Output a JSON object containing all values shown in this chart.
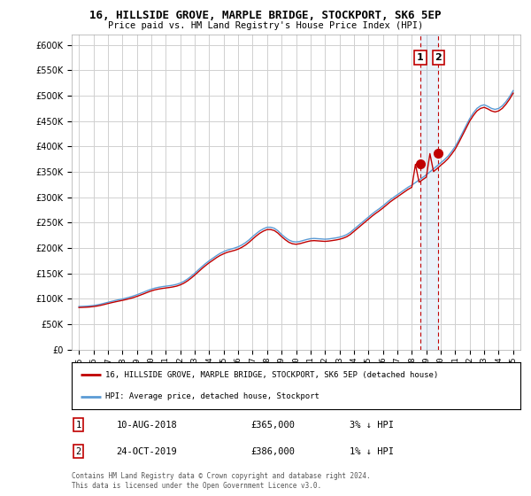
{
  "title": "16, HILLSIDE GROVE, MARPLE BRIDGE, STOCKPORT, SK6 5EP",
  "subtitle": "Price paid vs. HM Land Registry's House Price Index (HPI)",
  "ytick_values": [
    0,
    50000,
    100000,
    150000,
    200000,
    250000,
    300000,
    350000,
    400000,
    450000,
    500000,
    550000,
    600000
  ],
  "ylim": [
    0,
    620000
  ],
  "xlim_start": 1994.5,
  "xlim_end": 2025.5,
  "xticks": [
    1995,
    1996,
    1997,
    1998,
    1999,
    2000,
    2001,
    2002,
    2003,
    2004,
    2005,
    2006,
    2007,
    2008,
    2009,
    2010,
    2011,
    2012,
    2013,
    2014,
    2015,
    2016,
    2017,
    2018,
    2019,
    2020,
    2021,
    2022,
    2023,
    2024,
    2025
  ],
  "hpi_color": "#5b9bd5",
  "price_color": "#c00000",
  "marker_color": "#c00000",
  "annotation_color": "#c00000",
  "grid_color": "#d0d0d0",
  "bg_color": "#ffffff",
  "transaction1_date": "10-AUG-2018",
  "transaction1_price": "£365,000",
  "transaction1_pct": "3% ↓ HPI",
  "transaction2_date": "24-OCT-2019",
  "transaction2_price": "£386,000",
  "transaction2_pct": "1% ↓ HPI",
  "footer": "Contains HM Land Registry data © Crown copyright and database right 2024.\nThis data is licensed under the Open Government Licence v3.0.",
  "legend1": "16, HILLSIDE GROVE, MARPLE BRIDGE, STOCKPORT, SK6 5EP (detached house)",
  "legend2": "HPI: Average price, detached house, Stockport",
  "hpi_y": [
    85000,
    85300,
    85700,
    86200,
    87000,
    88100,
    89600,
    91400,
    93200,
    95000,
    96700,
    98300,
    99800,
    101500,
    103400,
    105600,
    108000,
    110800,
    113500,
    116500,
    119000,
    121200,
    122800,
    124000,
    125000,
    125900,
    127000,
    128600,
    131000,
    134500,
    139000,
    144500,
    150500,
    157000,
    163500,
    169500,
    175000,
    180000,
    185000,
    189500,
    193000,
    196000,
    198000,
    200000,
    202500,
    206000,
    210500,
    216000,
    222500,
    228500,
    234000,
    238000,
    241000,
    241000,
    239000,
    234000,
    227000,
    221000,
    216000,
    213000,
    212000,
    213000,
    215000,
    217000,
    218500,
    219000,
    218500,
    218000,
    217500,
    218000,
    219000,
    220000,
    221500,
    223500,
    226500,
    231000,
    237000,
    243000,
    249000,
    255000,
    261000,
    267000,
    272500,
    277500,
    283000,
    289000,
    295000,
    300000,
    305000,
    310000,
    315000,
    320000,
    324000,
    329000,
    334000,
    339000,
    344000,
    350000,
    356000,
    362000,
    368000,
    374000,
    381000,
    390000,
    400000,
    413000,
    427000,
    441000,
    455000,
    466000,
    475000,
    480000,
    482000,
    479000,
    475000,
    473000,
    475000,
    480000,
    488000,
    498000,
    510000
  ],
  "price_y": [
    83000,
    83300,
    83600,
    84100,
    84900,
    85900,
    87300,
    89000,
    90800,
    92500,
    94100,
    95600,
    97100,
    98700,
    100500,
    102500,
    104800,
    107500,
    110200,
    113100,
    115700,
    117800,
    119300,
    120500,
    121500,
    122400,
    123600,
    125100,
    127500,
    130900,
    135400,
    140800,
    146800,
    153200,
    159700,
    165600,
    171100,
    176000,
    181100,
    185400,
    188800,
    191700,
    193600,
    195500,
    197900,
    201400,
    205800,
    211300,
    217700,
    223900,
    229300,
    233500,
    236400,
    236500,
    234500,
    229500,
    222600,
    216600,
    211500,
    208500,
    207500,
    208600,
    210600,
    212600,
    214200,
    214700,
    214200,
    213700,
    213200,
    213800,
    214800,
    215900,
    217300,
    219400,
    222300,
    226800,
    232800,
    238800,
    244800,
    250800,
    256800,
    262800,
    268300,
    273300,
    278800,
    284800,
    290800,
    295900,
    300800,
    305800,
    310800,
    315700,
    319700,
    364900,
    329700,
    334700,
    339600,
    385900,
    350600,
    356500,
    363000,
    369000,
    376000,
    385000,
    395000,
    408000,
    422000,
    436000,
    450000,
    461000,
    470000,
    475000,
    477000,
    474000,
    470000,
    468000,
    470000,
    475000,
    483000,
    493000,
    505000
  ],
  "x_vals": [
    1995.0,
    1995.25,
    1995.5,
    1995.75,
    1996.0,
    1996.25,
    1996.5,
    1996.75,
    1997.0,
    1997.25,
    1997.5,
    1997.75,
    1998.0,
    1998.25,
    1998.5,
    1998.75,
    1999.0,
    1999.25,
    1999.5,
    1999.75,
    2000.0,
    2000.25,
    2000.5,
    2000.75,
    2001.0,
    2001.25,
    2001.5,
    2001.75,
    2002.0,
    2002.25,
    2002.5,
    2002.75,
    2003.0,
    2003.25,
    2003.5,
    2003.75,
    2004.0,
    2004.25,
    2004.5,
    2004.75,
    2005.0,
    2005.25,
    2005.5,
    2005.75,
    2006.0,
    2006.25,
    2006.5,
    2006.75,
    2007.0,
    2007.25,
    2007.5,
    2007.75,
    2008.0,
    2008.25,
    2008.5,
    2008.75,
    2009.0,
    2009.25,
    2009.5,
    2009.75,
    2010.0,
    2010.25,
    2010.5,
    2010.75,
    2011.0,
    2011.25,
    2011.5,
    2011.75,
    2012.0,
    2012.25,
    2012.5,
    2012.75,
    2013.0,
    2013.25,
    2013.5,
    2013.75,
    2014.0,
    2014.25,
    2014.5,
    2014.75,
    2015.0,
    2015.25,
    2015.5,
    2015.75,
    2016.0,
    2016.25,
    2016.5,
    2016.75,
    2017.0,
    2017.25,
    2017.5,
    2017.75,
    2018.0,
    2018.25,
    2018.5,
    2018.75,
    2019.0,
    2019.25,
    2019.5,
    2019.75,
    2020.0,
    2020.25,
    2020.5,
    2020.75,
    2021.0,
    2021.25,
    2021.5,
    2021.75,
    2022.0,
    2022.25,
    2022.5,
    2022.75,
    2023.0,
    2023.25,
    2023.5,
    2023.75,
    2024.0,
    2024.25,
    2024.5,
    2024.75,
    2025.0
  ],
  "marker1_x": 2018.583,
  "marker1_y": 365000,
  "marker2_x": 2019.833,
  "marker2_y": 386000,
  "vline1_x": 2018.583,
  "vline2_x": 2019.833,
  "shade_alpha": 0.12
}
